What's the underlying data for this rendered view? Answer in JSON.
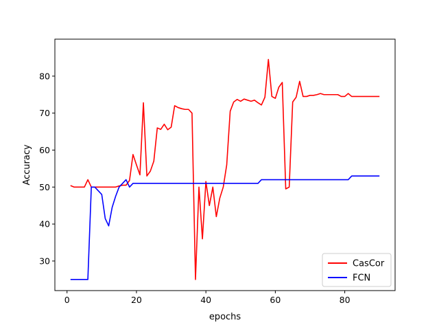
{
  "chart_data": {
    "type": "line",
    "xlabel": "epochs",
    "ylabel": "Accuracy",
    "xlim": [
      -3.5,
      94.5
    ],
    "ylim": [
      22,
      90
    ],
    "xticks": [
      0,
      20,
      40,
      60,
      80
    ],
    "yticks": [
      30,
      40,
      50,
      60,
      70,
      80
    ],
    "grid": false,
    "legend_position": "lower-right",
    "series": [
      {
        "name": "CasCor",
        "color": "#ff0000",
        "x": [
          1,
          2,
          3,
          4,
          5,
          6,
          7,
          8,
          9,
          10,
          11,
          12,
          13,
          14,
          15,
          16,
          17,
          18,
          19,
          20,
          21,
          22,
          23,
          24,
          25,
          26,
          27,
          28,
          29,
          30,
          31,
          32,
          33,
          34,
          35,
          36,
          37,
          38,
          39,
          40,
          41,
          42,
          43,
          44,
          45,
          46,
          47,
          48,
          49,
          50,
          51,
          52,
          53,
          54,
          55,
          56,
          57,
          58,
          59,
          60,
          61,
          62,
          63,
          64,
          65,
          66,
          67,
          68,
          69,
          70,
          71,
          72,
          73,
          74,
          75,
          76,
          77,
          78,
          79,
          80,
          81,
          82,
          83,
          84,
          85,
          86,
          87,
          88,
          89,
          90
        ],
        "y": [
          50.4,
          50.0,
          50.0,
          50.0,
          50.0,
          52.0,
          50.0,
          50.0,
          50.0,
          50.0,
          50.0,
          50.0,
          50.0,
          50.0,
          50.3,
          50.5,
          50.5,
          51.8,
          58.8,
          56.0,
          53.3,
          72.8,
          53.0,
          54.3,
          57.0,
          66.0,
          65.6,
          67.0,
          65.5,
          66.2,
          72.0,
          71.5,
          71.2,
          71.0,
          71.0,
          70.0,
          25.0,
          50.0,
          36.0,
          51.5,
          45.0,
          50.0,
          42.0,
          47.0,
          50.0,
          56.0,
          70.5,
          73.0,
          73.7,
          73.2,
          73.8,
          73.5,
          73.2,
          73.5,
          72.8,
          72.2,
          74.3,
          84.5,
          74.5,
          74.0,
          77.0,
          78.3,
          49.5,
          50.0,
          73.0,
          74.3,
          78.6,
          74.5,
          74.5,
          74.8,
          74.8,
          75.0,
          75.3,
          75.0,
          75.0,
          75.0,
          75.0,
          75.0,
          74.5,
          74.5,
          75.3,
          74.5,
          74.5,
          74.5,
          74.5,
          74.5,
          74.5,
          74.5,
          74.5,
          74.5
        ]
      },
      {
        "name": "FCN",
        "color": "#0000ff",
        "x": [
          1,
          6,
          7,
          8,
          9,
          10,
          11,
          12,
          13,
          14,
          15,
          16,
          17,
          18,
          19,
          20,
          55,
          56,
          81,
          82,
          90
        ],
        "y": [
          25.0,
          25.0,
          50.0,
          50.0,
          49.0,
          48.0,
          41.5,
          39.5,
          44.5,
          47.5,
          50.0,
          51.0,
          52.0,
          50.0,
          51.0,
          51.0,
          51.0,
          52.0,
          52.0,
          53.0,
          53.0
        ]
      }
    ]
  }
}
